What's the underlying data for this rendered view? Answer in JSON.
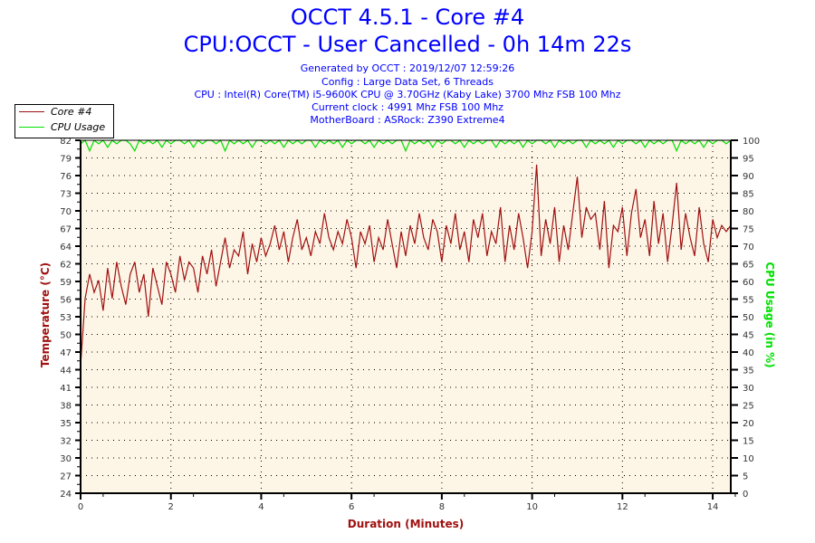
{
  "header": {
    "title": "OCCT 4.5.1 - Core #4",
    "subtitle": "CPU:OCCT - User Cancelled - 0h 14m 22s",
    "info": [
      "Generated by OCCT : 2019/12/07 12:59:26",
      "Config : Large Data Set, 6 Threads",
      "CPU : Intel(R) Core(TM) i5-9600K CPU @ 3.70GHz (Kaby Lake) 3700 Mhz FSB 100 Mhz",
      "Current clock : 4991 Mhz FSB 100 Mhz",
      "MotherBoard : ASRock: Z390 Extreme4"
    ]
  },
  "chart_data": {
    "type": "line",
    "xlabel": "Duration (Minutes)",
    "ylabel": "Temperature (°C)",
    "y2label": "CPU Usage (in %)",
    "xlim": [
      0,
      14.4
    ],
    "xticks": [
      "0",
      "2",
      "4",
      "6",
      "8",
      "10",
      "12",
      "14"
    ],
    "ylim": [
      24,
      82
    ],
    "yticks": [
      "24",
      "27",
      "30",
      "32",
      "35",
      "38",
      "41",
      "44",
      "47",
      "50",
      "53",
      "56",
      "59",
      "62",
      "64",
      "67",
      "70",
      "73",
      "76",
      "79",
      "82"
    ],
    "y2lim": [
      0,
      100
    ],
    "y2ticks": [
      "0",
      "5",
      "10",
      "15",
      "20",
      "25",
      "30",
      "35",
      "40",
      "45",
      "50",
      "55",
      "60",
      "65",
      "70",
      "75",
      "80",
      "85",
      "90",
      "95",
      "100"
    ],
    "grid": true,
    "legend_position": "top-left",
    "colors": {
      "temp": "#a01010",
      "cpu": "#00e000",
      "plot_bg": "#fdf5e6"
    },
    "series": [
      {
        "name": "Core #4",
        "x_step": 0.1,
        "values": [
          45,
          56,
          60,
          57,
          59,
          54,
          61,
          56,
          62,
          58,
          55,
          60,
          62,
          57,
          60,
          53,
          61,
          58,
          55,
          62,
          60,
          57,
          63,
          59,
          62,
          61,
          57,
          63,
          60,
          64,
          58,
          62,
          66,
          61,
          64,
          63,
          67,
          60,
          65,
          62,
          66,
          63,
          65,
          68,
          64,
          67,
          62,
          66,
          69,
          64,
          66,
          63,
          67,
          65,
          70,
          66,
          64,
          67,
          65,
          69,
          66,
          61,
          67,
          65,
          68,
          62,
          66,
          64,
          69,
          65,
          61,
          67,
          63,
          68,
          65,
          70,
          66,
          64,
          69,
          67,
          62,
          68,
          65,
          70,
          64,
          67,
          62,
          69,
          66,
          70,
          63,
          67,
          65,
          71,
          62,
          68,
          64,
          70,
          66,
          61,
          67,
          78,
          63,
          69,
          65,
          71,
          62,
          68,
          64,
          70,
          76,
          66,
          71,
          69,
          70,
          64,
          72,
          61,
          68,
          67,
          71,
          63,
          70,
          74,
          66,
          69,
          63,
          72,
          65,
          70,
          62,
          68,
          75,
          64,
          70,
          66,
          63,
          71,
          65,
          62,
          69,
          66,
          68,
          67,
          68
        ]
      },
      {
        "name": "CPU Usage",
        "x_step": 0.1,
        "values": [
          99,
          100,
          97,
          100,
          99,
          100,
          98,
          100,
          99,
          100,
          100,
          99,
          97,
          100,
          99,
          100,
          99,
          100,
          98,
          100,
          99,
          100,
          100,
          99,
          100,
          98,
          100,
          99,
          100,
          100,
          99,
          100,
          97,
          100,
          99,
          100,
          99,
          100,
          98,
          100,
          100,
          99,
          100,
          99,
          100,
          98,
          100,
          99,
          100,
          99,
          100,
          100,
          98,
          100,
          99,
          100,
          99,
          100,
          98,
          100,
          99,
          100,
          100,
          99,
          100,
          98,
          100,
          99,
          100,
          99,
          100,
          100,
          97,
          100,
          99,
          100,
          99,
          100,
          98,
          100,
          99,
          100,
          100,
          99,
          100,
          98,
          100,
          99,
          100,
          99,
          100,
          100,
          98,
          100,
          99,
          100,
          99,
          100,
          98,
          100,
          99,
          100,
          100,
          99,
          100,
          98,
          100,
          99,
          100,
          99,
          100,
          100,
          98,
          100,
          99,
          100,
          99,
          100,
          98,
          100,
          99,
          100,
          100,
          99,
          100,
          98,
          100,
          99,
          100,
          99,
          100,
          100,
          97,
          100,
          99,
          100,
          99,
          100,
          98,
          100,
          99,
          100,
          100,
          99,
          100
        ]
      }
    ]
  }
}
